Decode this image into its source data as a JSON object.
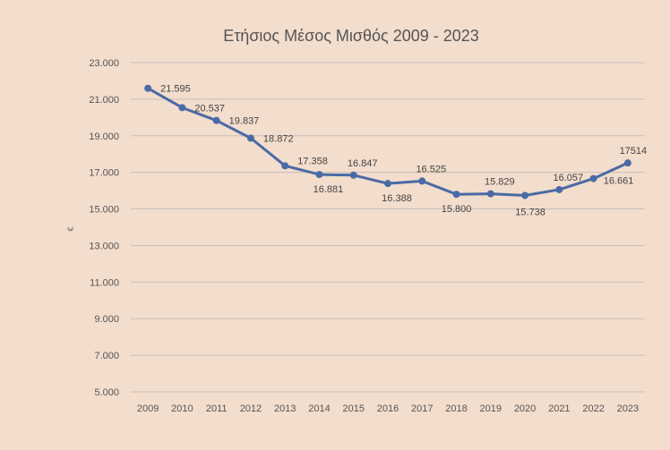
{
  "chart_data": {
    "type": "line",
    "title": "Ετήσιος Μέσος Μισθός 2009 - 2023",
    "xlabel": "",
    "ylabel": "€",
    "ylim": [
      5000,
      23000
    ],
    "yticks": [
      "5.000",
      "7.000",
      "9.000",
      "11.000",
      "13.000",
      "15.000",
      "17.000",
      "19.000",
      "21.000",
      "23.000"
    ],
    "ytick_values": [
      5000,
      7000,
      9000,
      11000,
      13000,
      15000,
      17000,
      19000,
      21000,
      23000
    ],
    "categories": [
      "2009",
      "2010",
      "2011",
      "2012",
      "2013",
      "2014",
      "2015",
      "2016",
      "2017",
      "2018",
      "2019",
      "2020",
      "2021",
      "2022",
      "2023"
    ],
    "values": [
      21595,
      20537,
      19837,
      18872,
      17358,
      16881,
      16847,
      16388,
      16525,
      15800,
      15829,
      15738,
      16057,
      16661,
      17514
    ],
    "data_labels": [
      "21.595",
      "20.537",
      "19.837",
      "18.872",
      "17.358",
      "16.881",
      "16.847",
      "16.388",
      "16.525",
      "15.800",
      "15.829",
      "15.738",
      "16.057",
      "16.661",
      "17514"
    ],
    "grid": true,
    "legend": "none",
    "line_color": "#4a6aa5",
    "grid_color": "#c7c0bb",
    "background_color": "#f3ddcc"
  }
}
